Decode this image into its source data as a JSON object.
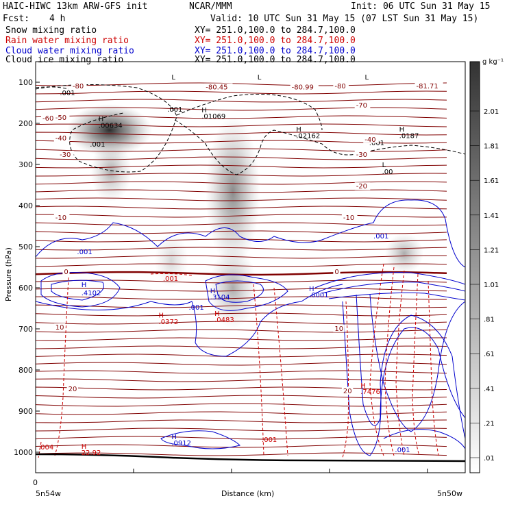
{
  "header": {
    "model": "HAIC-HIWC 13km ARW-GFS init",
    "org": "NCAR/MMM",
    "init": "Init: 06 UTC Sun 31 May 15",
    "fcst_label": "Fcst:",
    "fcst_value": "4 h",
    "valid": "Valid: 10 UTC Sun 31 May 15 (07 LST Sun 31 May 15)"
  },
  "legend": [
    {
      "label": "Snow mixing ratio",
      "xy": "XY= 251.0,100.0 to 284.7,100.0",
      "color": "#000000"
    },
    {
      "label": "Rain water mixing ratio",
      "xy": "XY= 251.0,100.0 to 284.7,100.0",
      "color": "#cc0000"
    },
    {
      "label": "Cloud water mixing ratio",
      "xy": "XY= 251.0,100.0 to 284.7,100.0",
      "color": "#0000cc"
    },
    {
      "label": "Cloud ice mixing ratio",
      "xy": "XY= 251.0,100.0 to 284.7,100.0",
      "color": "#000000"
    }
  ],
  "chart_data": {
    "type": "cross-section",
    "ylabel": "Pressure (hPa)",
    "xlabel": "Distance (km)",
    "x_start_label": "5n54w",
    "x_end_label": "5n50w",
    "x_zero_label": "0",
    "y_ticks": [
      100,
      200,
      300,
      400,
      500,
      600,
      700,
      800,
      900,
      1000
    ],
    "ylim": [
      1050,
      50
    ],
    "colorbar": {
      "unit": "g kg⁻¹",
      "ticks": [
        "2.01",
        "1.81",
        "1.61",
        "1.41",
        "1.21",
        "1.01",
        ".81",
        ".61",
        ".41",
        ".21",
        ".01"
      ]
    },
    "temperature_labels": [
      "-80",
      "-80.45",
      "-80.99",
      "-80",
      "-81.71",
      "-70",
      "-60",
      "-50",
      "-40",
      "-40",
      "-30",
      "-30",
      "-20",
      "-10",
      "-10",
      "0",
      "0",
      "10",
      "10",
      "20",
      "20"
    ],
    "annotations": [
      {
        "text": ".001",
        "color": "#000000",
        "x": 0.05,
        "p": 125
      },
      {
        "text": ".001",
        "color": "#000000",
        "x": 0.3,
        "p": 165
      },
      {
        "text": "H",
        "color": "#000000",
        "x": 0.14,
        "p": 188
      },
      {
        "text": ".00634",
        "color": "#000000",
        "x": 0.14,
        "p": 204
      },
      {
        "text": ".001",
        "color": "#000000",
        "x": 0.12,
        "p": 250
      },
      {
        "text": "H",
        "color": "#000000",
        "x": 0.38,
        "p": 167
      },
      {
        "text": ".01069",
        "color": "#000000",
        "x": 0.38,
        "p": 182
      },
      {
        "text": "H",
        "color": "#000000",
        "x": 0.6,
        "p": 213
      },
      {
        "text": ".02162",
        "color": "#000000",
        "x": 0.6,
        "p": 229
      },
      {
        "text": ".001",
        "color": "#000000",
        "x": 0.77,
        "p": 247
      },
      {
        "text": "H",
        "color": "#000000",
        "x": 0.84,
        "p": 213
      },
      {
        "text": ".0187",
        "color": "#000000",
        "x": 0.84,
        "p": 229
      },
      {
        "text": "L",
        "color": "#000000",
        "x": 0.8,
        "p": 300
      },
      {
        "text": ".00",
        "color": "#000000",
        "x": 0.8,
        "p": 317
      },
      {
        "text": "L",
        "color": "#000000",
        "x": 0.31,
        "p": 87
      },
      {
        "text": "L",
        "color": "#000000",
        "x": 0.51,
        "p": 87
      },
      {
        "text": "L",
        "color": "#000000",
        "x": 0.76,
        "p": 87
      },
      {
        "text": ".001",
        "color": "#0000cc",
        "x": 0.09,
        "p": 512
      },
      {
        "text": ".001",
        "color": "#0000cc",
        "x": 0.78,
        "p": 473
      },
      {
        "text": "H",
        "color": "#0000cc",
        "x": 0.1,
        "p": 592
      },
      {
        "text": ".4102",
        "color": "#0000cc",
        "x": 0.1,
        "p": 612
      },
      {
        "text": "H",
        "color": "#0000cc",
        "x": 0.4,
        "p": 607
      },
      {
        "text": ".3104",
        "color": "#0000cc",
        "x": 0.4,
        "p": 622
      },
      {
        "text": "H",
        "color": "#0000cc",
        "x": 0.63,
        "p": 602
      },
      {
        "text": ".6001",
        "color": "#0000cc",
        "x": 0.63,
        "p": 617
      },
      {
        "text": ".001",
        "color": "#0000cc",
        "x": 0.35,
        "p": 647
      },
      {
        "text": "H",
        "color": "#0000cc",
        "x": 0.31,
        "p": 962
      },
      {
        "text": ".0912",
        "color": "#0000cc",
        "x": 0.31,
        "p": 977
      },
      {
        "text": ".001",
        "color": "#0000cc",
        "x": 0.83,
        "p": 993
      },
      {
        "text": ".001",
        "color": "#cc0000",
        "x": 0.29,
        "p": 577
      },
      {
        "text": "H",
        "color": "#cc0000",
        "x": 0.28,
        "p": 666
      },
      {
        "text": ".0372",
        "color": "#cc0000",
        "x": 0.28,
        "p": 682
      },
      {
        "text": "H",
        "color": "#cc0000",
        "x": 0.41,
        "p": 662
      },
      {
        "text": ".0483",
        "color": "#cc0000",
        "x": 0.41,
        "p": 677
      },
      {
        "text": "H",
        "color": "#cc0000",
        "x": 0.75,
        "p": 837
      },
      {
        "text": ".7476",
        "color": "#cc0000",
        "x": 0.75,
        "p": 852
      },
      {
        "text": ".001",
        "color": "#cc0000",
        "x": 0.52,
        "p": 968
      },
      {
        "text": ".004",
        "color": "#cc0000",
        "x": 0.0,
        "p": 987
      },
      {
        "text": "H",
        "color": "#cc0000",
        "x": 0.1,
        "p": 985
      },
      {
        "text": "22.92",
        "color": "#cc0000",
        "x": 0.1,
        "p": 1000
      }
    ]
  }
}
